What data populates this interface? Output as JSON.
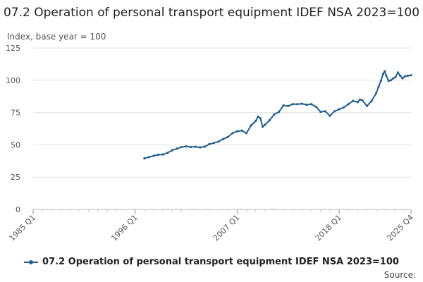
{
  "chart_data": {
    "type": "line",
    "title": "07.2 Operation of personal transport equipment IDEF NSA 2023=100",
    "ylabel": "Index, base year = 100",
    "ylim": [
      0,
      125
    ],
    "yticks": [
      "0",
      "25",
      "50",
      "75",
      "100",
      "125"
    ],
    "xticks": [
      "1985 Q1",
      "1996 Q1",
      "2007 Q1",
      "2018 Q1",
      "2025 Q4"
    ],
    "grid": "horizontal",
    "legend_position": "bottom",
    "source_label": "Source:",
    "series": [
      {
        "name": "07.2 Operation of personal transport equipment IDEF NSA 2023=100",
        "color": "#206095",
        "points": [
          [
            "1997-01",
            39.5
          ],
          [
            "1997-07",
            40.5
          ],
          [
            "1998-01",
            41.5
          ],
          [
            "1998-07",
            42.3
          ],
          [
            "1999-01",
            42.5
          ],
          [
            "1999-07",
            43.8
          ],
          [
            "2000-01",
            45.8
          ],
          [
            "2000-07",
            47.0
          ],
          [
            "2001-01",
            48.2
          ],
          [
            "2001-07",
            48.8
          ],
          [
            "2002-01",
            48.3
          ],
          [
            "2002-07",
            48.5
          ],
          [
            "2003-01",
            48.0
          ],
          [
            "2003-07",
            48.6
          ],
          [
            "2004-01",
            50.5
          ],
          [
            "2004-07",
            51.5
          ],
          [
            "2005-01",
            52.5
          ],
          [
            "2005-07",
            54.5
          ],
          [
            "2006-01",
            56.0
          ],
          [
            "2006-07",
            59.0
          ],
          [
            "2007-01",
            60.5
          ],
          [
            "2007-07",
            61.0
          ],
          [
            "2008-01",
            59.0
          ],
          [
            "2008-07",
            65.0
          ],
          [
            "2009-01",
            68.5
          ],
          [
            "2009-04",
            71.8
          ],
          [
            "2009-07",
            70.5
          ],
          [
            "2009-10",
            64.0
          ],
          [
            "2010-01",
            65.5
          ],
          [
            "2010-07",
            69.0
          ],
          [
            "2011-01",
            73.5
          ],
          [
            "2011-07",
            75.5
          ],
          [
            "2012-01",
            80.5
          ],
          [
            "2012-07",
            80.0
          ],
          [
            "2013-01",
            81.5
          ],
          [
            "2013-07",
            81.5
          ],
          [
            "2014-01",
            81.8
          ],
          [
            "2014-07",
            81.0
          ],
          [
            "2015-01",
            81.5
          ],
          [
            "2015-07",
            79.5
          ],
          [
            "2016-01",
            75.5
          ],
          [
            "2016-07",
            76.0
          ],
          [
            "2017-01",
            72.5
          ],
          [
            "2017-07",
            76.0
          ],
          [
            "2018-01",
            77.5
          ],
          [
            "2018-07",
            79.0
          ],
          [
            "2019-01",
            81.5
          ],
          [
            "2019-07",
            84.0
          ],
          [
            "2020-01",
            83.0
          ],
          [
            "2020-04",
            85.0
          ],
          [
            "2020-07",
            84.5
          ],
          [
            "2021-01",
            80.0
          ],
          [
            "2021-07",
            84.0
          ],
          [
            "2022-01",
            90.0
          ],
          [
            "2022-04",
            95.0
          ],
          [
            "2022-07",
            99.5
          ],
          [
            "2022-10",
            105.0
          ],
          [
            "2022-12",
            107.0
          ],
          [
            "2023-02",
            103.5
          ],
          [
            "2023-05",
            99.5
          ],
          [
            "2023-08",
            100.0
          ],
          [
            "2023-11",
            101.5
          ],
          [
            "2024-02",
            102.5
          ],
          [
            "2024-05",
            106.0
          ],
          [
            "2024-08",
            103.5
          ],
          [
            "2024-11",
            101.5
          ],
          [
            "2025-02",
            103.0
          ],
          [
            "2025-06",
            103.5
          ],
          [
            "2025-10",
            103.8
          ]
        ]
      }
    ]
  }
}
